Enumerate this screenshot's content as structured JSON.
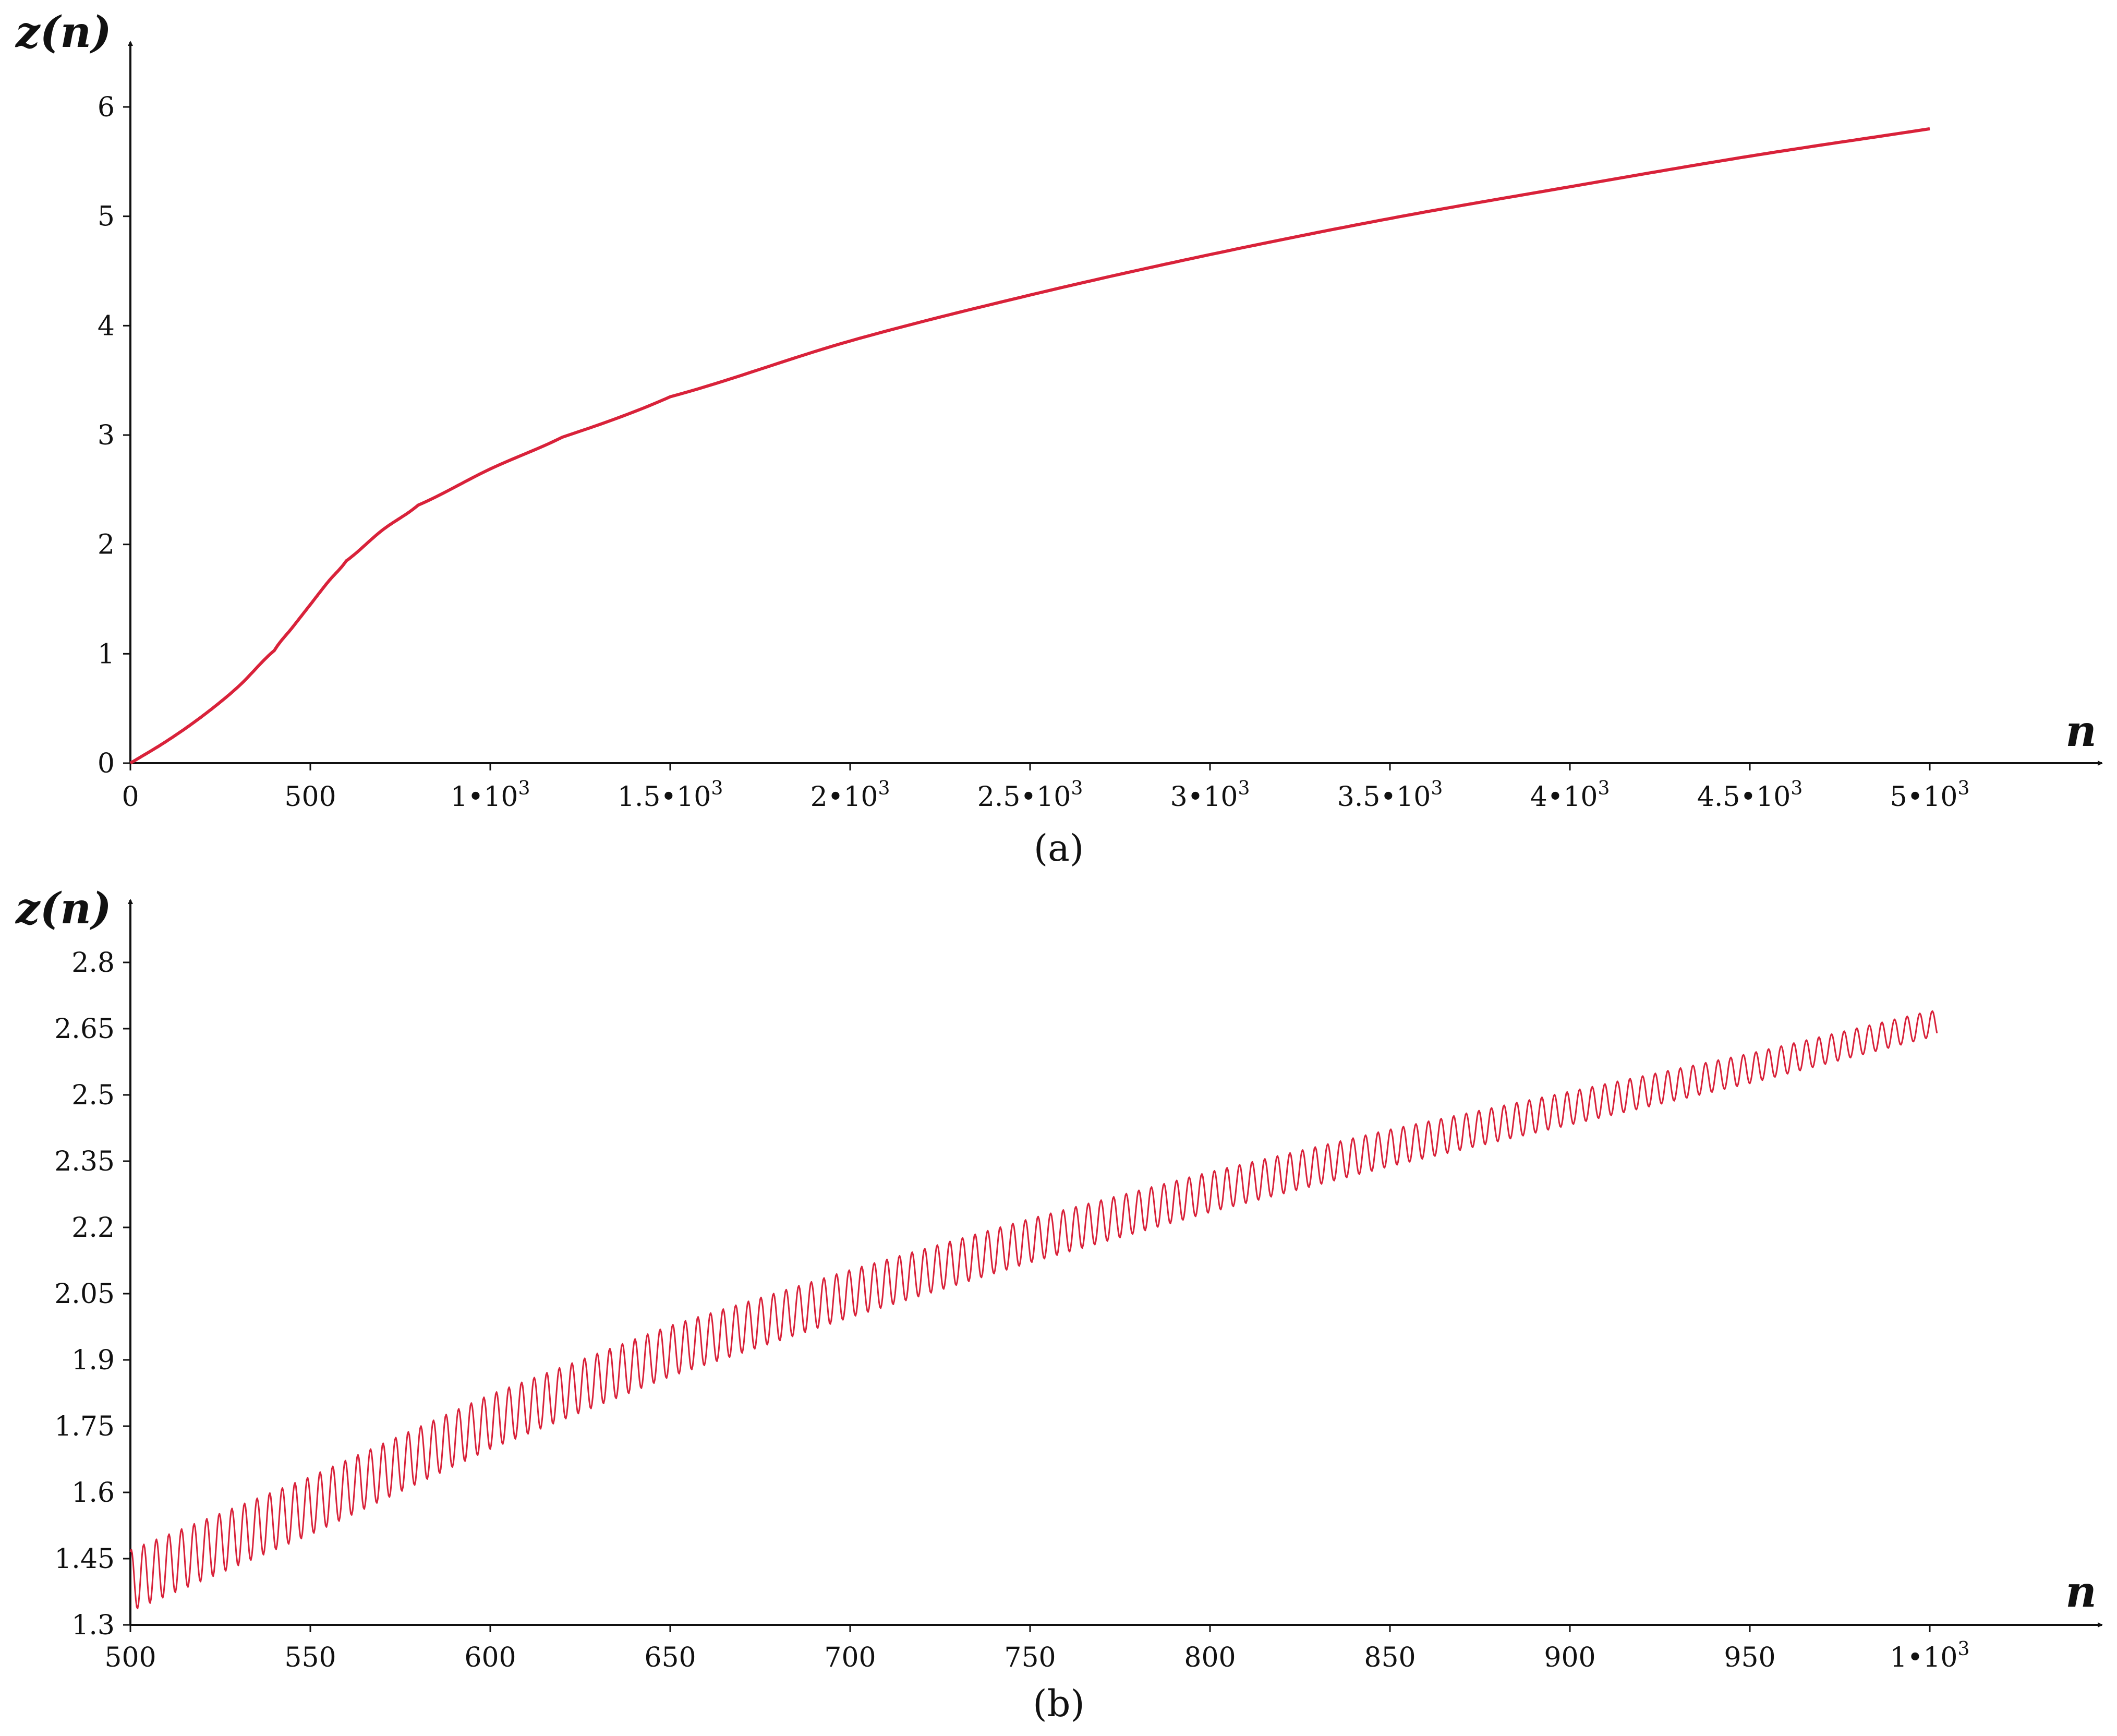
{
  "series_color": "#d9223a",
  "chart_data": [
    {
      "type": "line",
      "panel_label": "(a)",
      "xlabel": "n",
      "ylabel": "z(n)",
      "xlim": [
        0,
        5500
      ],
      "ylim": [
        0,
        6.4
      ],
      "x_ticks": [
        {
          "value": 0,
          "label": "0"
        },
        {
          "value": 500,
          "label": "500"
        },
        {
          "value": 1000,
          "label": "1•10",
          "exp": "3"
        },
        {
          "value": 1500,
          "label": "1.5•10",
          "exp": "3"
        },
        {
          "value": 2000,
          "label": "2•10",
          "exp": "3"
        },
        {
          "value": 2500,
          "label": "2.5•10",
          "exp": "3"
        },
        {
          "value": 3000,
          "label": "3•10",
          "exp": "3"
        },
        {
          "value": 3500,
          "label": "3.5•10",
          "exp": "3"
        },
        {
          "value": 4000,
          "label": "4•10",
          "exp": "3"
        },
        {
          "value": 4500,
          "label": "4.5•10",
          "exp": "3"
        },
        {
          "value": 5000,
          "label": "5•10",
          "exp": "3"
        }
      ],
      "y_ticks": [
        {
          "value": 0,
          "label": "0"
        },
        {
          "value": 1,
          "label": "1"
        },
        {
          "value": 2,
          "label": "2"
        },
        {
          "value": 3,
          "label": "3"
        },
        {
          "value": 4,
          "label": "4"
        },
        {
          "value": 5,
          "label": "5"
        },
        {
          "value": 6,
          "label": "6"
        }
      ],
      "series": [
        {
          "x": [
            0,
            100,
            200,
            300,
            400,
            450,
            500,
            550,
            600,
            700,
            800,
            1000,
            1200,
            1500,
            2000,
            2500,
            3000,
            3500,
            4000,
            4500,
            5000
          ],
          "y": [
            0,
            0.2,
            0.43,
            0.7,
            1.03,
            1.24,
            1.45,
            1.66,
            1.85,
            2.13,
            2.36,
            2.69,
            2.98,
            3.35,
            3.86,
            4.28,
            4.65,
            4.98,
            5.27,
            5.55,
            5.8
          ]
        }
      ]
    },
    {
      "type": "line",
      "panel_label": "(b)",
      "xlabel": "n",
      "ylabel": "z(n)",
      "xlim": [
        500,
        1150
      ],
      "ylim": [
        1.3,
        2.88
      ],
      "x_ticks": [
        {
          "value": 500,
          "label": "500"
        },
        {
          "value": 550,
          "label": "550"
        },
        {
          "value": 600,
          "label": "600"
        },
        {
          "value": 650,
          "label": "650"
        },
        {
          "value": 700,
          "label": "700"
        },
        {
          "value": 750,
          "label": "750"
        },
        {
          "value": 800,
          "label": "800"
        },
        {
          "value": 850,
          "label": "850"
        },
        {
          "value": 900,
          "label": "900"
        },
        {
          "value": 950,
          "label": "950"
        },
        {
          "value": 1000,
          "label": "1•10",
          "exp": "3"
        }
      ],
      "y_ticks": [
        {
          "value": 1.3,
          "label": "1.3"
        },
        {
          "value": 1.45,
          "label": "1.45"
        },
        {
          "value": 1.6,
          "label": "1.6"
        },
        {
          "value": 1.75,
          "label": "1.75"
        },
        {
          "value": 1.9,
          "label": "1.9"
        },
        {
          "value": 2.05,
          "label": "2.05"
        },
        {
          "value": 2.2,
          "label": "2.2"
        },
        {
          "value": 2.35,
          "label": "2.35"
        },
        {
          "value": 2.5,
          "label": "2.5"
        },
        {
          "value": 2.65,
          "label": "2.65"
        },
        {
          "value": 2.8,
          "label": "2.8"
        }
      ],
      "trend": {
        "x": [
          500,
          550,
          600,
          650,
          700,
          750,
          800,
          850,
          900,
          950,
          1000
        ],
        "y": [
          1.4,
          1.57,
          1.76,
          1.92,
          2.05,
          2.17,
          2.28,
          2.38,
          2.47,
          2.56,
          2.66
        ]
      },
      "oscillation": {
        "period": 3.5,
        "amplitude_start": 0.07,
        "amplitude_end": 0.03
      }
    }
  ]
}
